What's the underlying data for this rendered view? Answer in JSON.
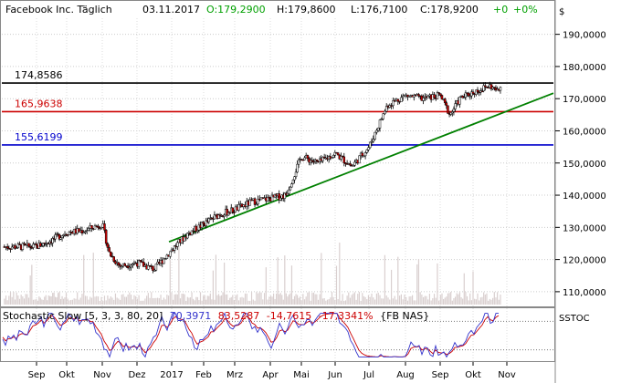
{
  "header": {
    "instrument": "Facebook Inc. Täglich",
    "date": "03.11.2017",
    "open": "O:179,2900",
    "high": "H:179,8600",
    "low": "L:176,7100",
    "close": "C:178,9200",
    "change": "+0",
    "change_pct": "+0%"
  },
  "colors": {
    "open": "#00a000",
    "change": "#00a000",
    "level1": "#000000",
    "level2": "#cc0000",
    "level3": "#0000cc",
    "trendline": "#008000",
    "stoch_k": "#3333cc",
    "stoch_d": "#cc0000"
  },
  "chart_data": {
    "type": "candlestick",
    "currency_label": "$",
    "y_ticks": [
      "190,0000",
      "180,0000",
      "170,0000",
      "160,0000",
      "150,0000",
      "140,0000",
      "130,0000",
      "120,0000",
      "110,0000"
    ],
    "y_tick_values": [
      190,
      180,
      170,
      160,
      150,
      140,
      130,
      120,
      110
    ],
    "ylim": [
      106,
      195
    ],
    "x_labels": [
      "Sep",
      "Okt",
      "Nov",
      "Dez",
      "2017",
      "Feb",
      "Mrz",
      "Apr",
      "Mai",
      "Jun",
      "Jul",
      "Aug",
      "Sep",
      "Okt",
      "Nov"
    ],
    "levels": [
      {
        "label": "174,8586",
        "value": 174.8586
      },
      {
        "label": "165,9638",
        "value": 165.9638
      },
      {
        "label": "155,6199",
        "value": 155.6199
      }
    ],
    "trendline": {
      "from": {
        "x": "Dez",
        "y": 125.5
      },
      "to": {
        "x": "Nov",
        "y": 170
      }
    },
    "price_anchors": [
      {
        "m": 0.0,
        "p": 124
      },
      {
        "m": 0.5,
        "p": 126
      },
      {
        "m": 1.0,
        "p": 128.5
      },
      {
        "m": 1.5,
        "p": 129
      },
      {
        "m": 2.0,
        "p": 131
      },
      {
        "m": 2.2,
        "p": 122
      },
      {
        "m": 2.5,
        "p": 118
      },
      {
        "m": 3.0,
        "p": 119
      },
      {
        "m": 3.5,
        "p": 117
      },
      {
        "m": 4.0,
        "p": 123
      },
      {
        "m": 4.5,
        "p": 128
      },
      {
        "m": 5.0,
        "p": 131
      },
      {
        "m": 5.5,
        "p": 134
      },
      {
        "m": 6.0,
        "p": 135.5
      },
      {
        "m": 6.5,
        "p": 138
      },
      {
        "m": 7.0,
        "p": 139
      },
      {
        "m": 7.5,
        "p": 140
      },
      {
        "m": 8.0,
        "p": 152
      },
      {
        "m": 8.5,
        "p": 150
      },
      {
        "m": 9.0,
        "p": 153
      },
      {
        "m": 9.5,
        "p": 149
      },
      {
        "m": 10.0,
        "p": 155
      },
      {
        "m": 10.5,
        "p": 168
      },
      {
        "m": 11.0,
        "p": 171
      },
      {
        "m": 11.5,
        "p": 170
      },
      {
        "m": 12.0,
        "p": 171
      },
      {
        "m": 12.3,
        "p": 165
      },
      {
        "m": 12.6,
        "p": 170
      },
      {
        "m": 13.0,
        "p": 172
      },
      {
        "m": 13.5,
        "p": 174
      },
      {
        "m": 13.75,
        "p": 172
      },
      {
        "m": 14.0,
        "p": 179
      }
    ],
    "volume_panel": true,
    "indicator": {
      "title": "Stochastic Slow [5, 3, 3, 80, 20]",
      "value_k": "70,3971",
      "value_d": "83,5287",
      "value_3": "-14,7615",
      "value_4": "-17,3341%",
      "symbol": "{FB NAS}",
      "side_label": "SSTOC",
      "levels": [
        80,
        20
      ]
    }
  }
}
